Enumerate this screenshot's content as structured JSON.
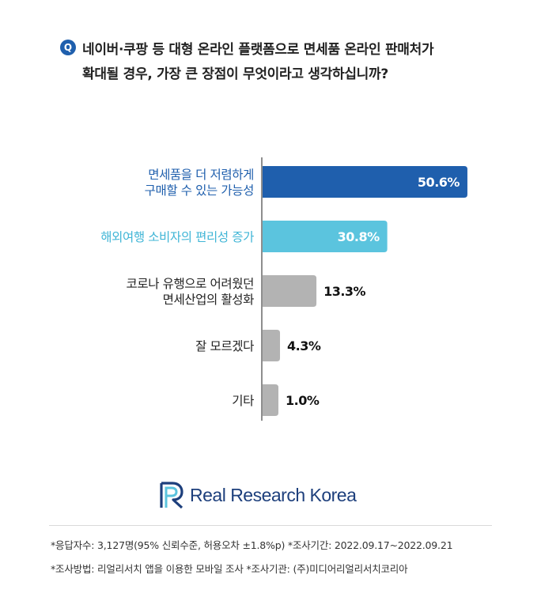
{
  "question": {
    "badge": "Q",
    "line1": "네이버·쿠팡 등 대형 온라인 플랫폼으로 면세품 온라인 판매처가",
    "line2": "확대될 경우, 가장 큰 장점이 무엇이라고 생각하십니까?"
  },
  "chart_data": {
    "type": "bar",
    "orientation": "horizontal",
    "categories": [
      [
        "면세품을 더 저렴하게",
        "구매할 수 있는 가능성"
      ],
      [
        "해외여행 소비자의 편리성 증가"
      ],
      [
        "코로나 유행으로 어려웠던",
        "면세산업의 활성화"
      ],
      [
        "잘 모르겠다"
      ],
      [
        "기타"
      ]
    ],
    "values": [
      50.6,
      30.8,
      13.3,
      4.3,
      1.0
    ],
    "value_labels": [
      "50.6%",
      "30.8%",
      "13.3%",
      "4.3%",
      "1.0%"
    ],
    "colors": [
      "#1f5fad",
      "#5bc4de",
      "#b3b3b3",
      "#b3b3b3",
      "#b3b3b3"
    ],
    "label_colors": [
      "#1f5fad",
      "#3fb5d6",
      "#222222",
      "#222222",
      "#222222"
    ],
    "value_label_inside": [
      true,
      true,
      false,
      false,
      false
    ],
    "xlim": [
      0,
      51
    ]
  },
  "brand": {
    "name": "Real Research Korea"
  },
  "footnotes": {
    "line1": "*응답자수: 3,127명(95% 신뢰수준, 허용오차 ±1.8%p)  *조사기간: 2022.09.17~2022.09.21",
    "line2": "*조사방법: 리얼리서치 앱을 이용한 모바일 조사  *조사기관: (주)미디어리얼리서치코리아"
  }
}
